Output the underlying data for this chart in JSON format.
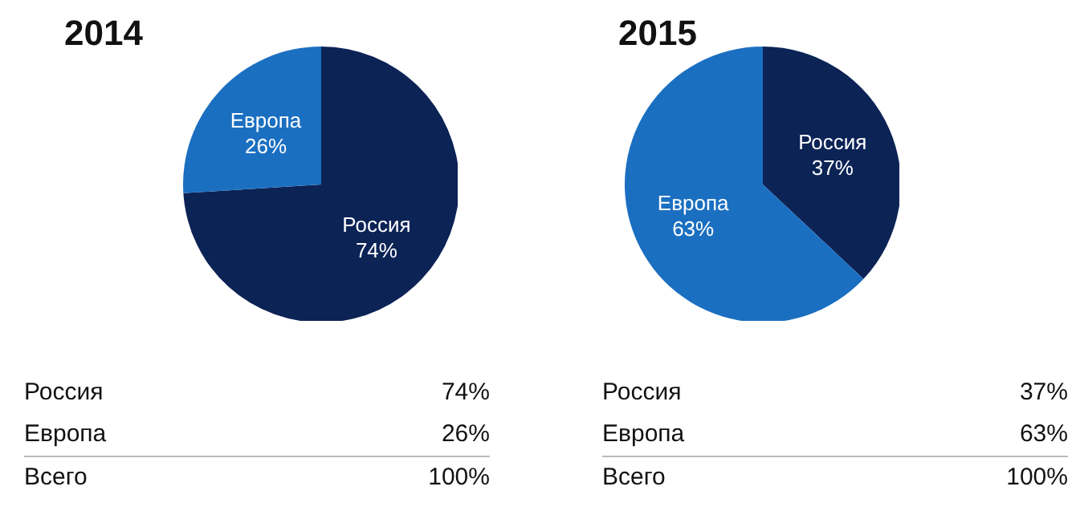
{
  "chart_data": [
    {
      "type": "pie",
      "title": "2014",
      "categories": [
        "Россия",
        "Европа"
      ],
      "values": [
        74,
        26
      ],
      "colors": [
        "#0c2356",
        "#1b6fc1"
      ],
      "value_labels": [
        "74%",
        "26%"
      ],
      "annotations": [
        "Всего",
        "100%"
      ]
    },
    {
      "type": "pie",
      "title": "2015",
      "categories": [
        "Россия",
        "Европа"
      ],
      "values": [
        37,
        63
      ],
      "colors": [
        "#0c2356",
        "#1b6fc1"
      ],
      "value_labels": [
        "37%",
        "63%"
      ],
      "annotations": [
        "Всего",
        "100%"
      ]
    }
  ]
}
